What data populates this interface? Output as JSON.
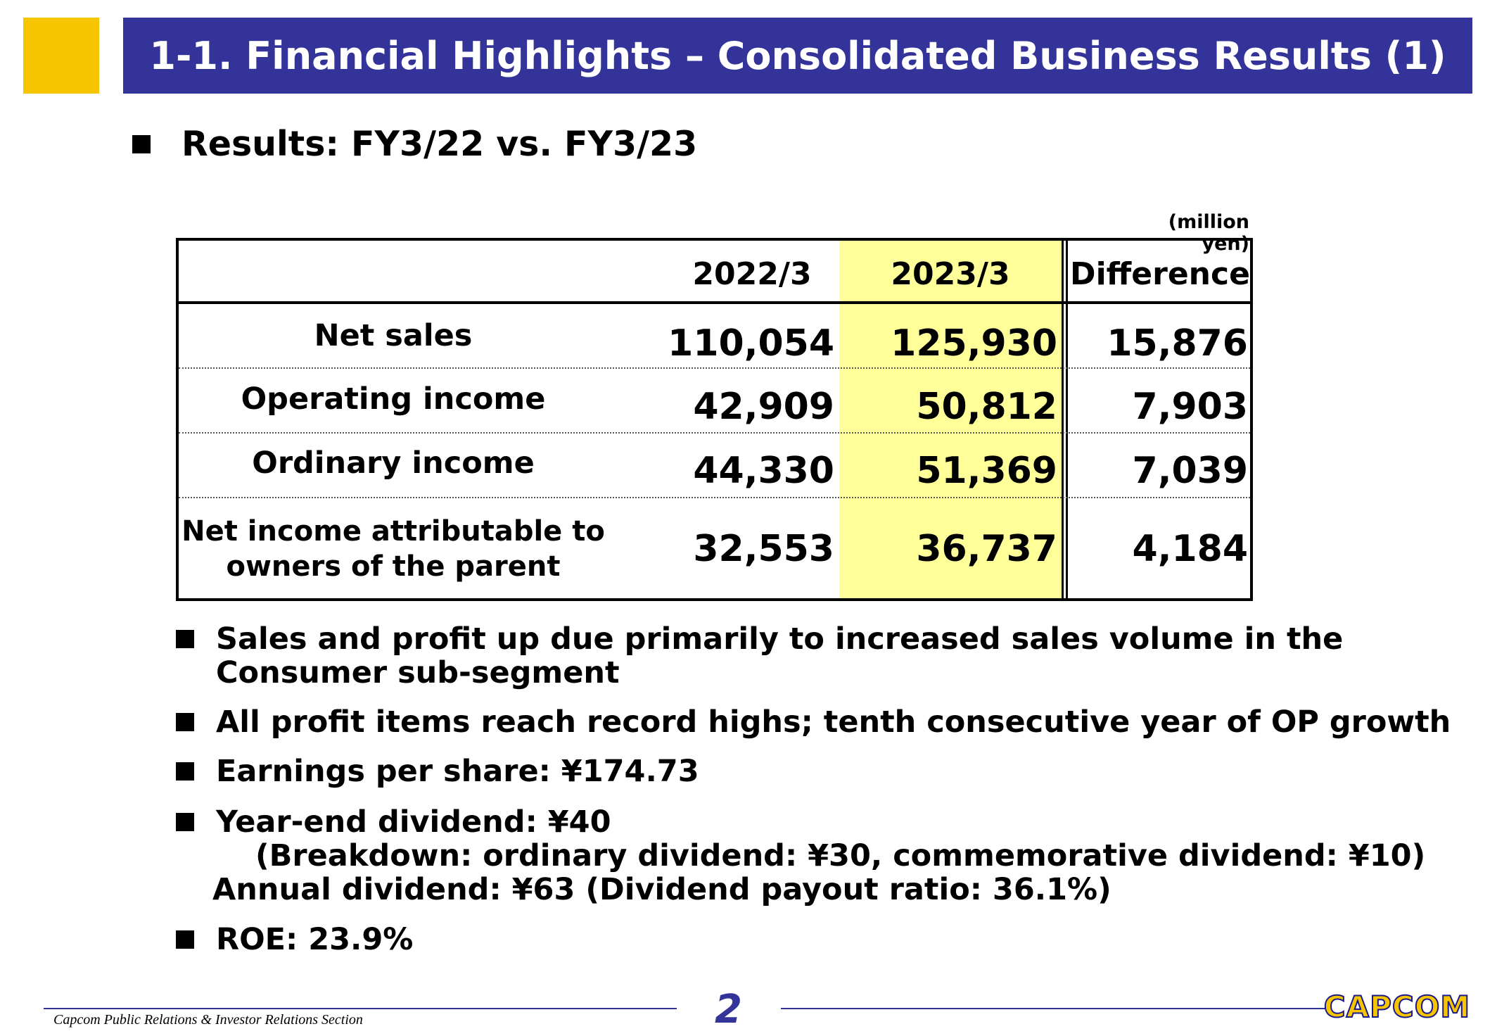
{
  "header": {
    "title": "1-1. Financial Highlights – Consolidated Business Results (1)"
  },
  "subtitle": "Results: FY3/22 vs. FY3/23",
  "unit": "(million yen)",
  "table": {
    "columns": [
      "2022/3",
      "2023/3",
      "Difference"
    ],
    "rows": [
      {
        "label": "Net sales",
        "values": [
          "110,054",
          "125,930",
          "15,876"
        ]
      },
      {
        "label": "Operating income",
        "values": [
          "42,909",
          "50,812",
          "7,903"
        ]
      },
      {
        "label": "Ordinary income",
        "values": [
          "44,330",
          "51,369",
          "7,039"
        ]
      },
      {
        "label_line1": "Net income attributable to",
        "label_line2": "owners of the parent",
        "values": [
          "32,553",
          "36,737",
          "4,184"
        ]
      }
    ]
  },
  "notes": {
    "n1_line1": "Sales and profit up due primarily to increased sales volume in the",
    "n1_line2": "Consumer sub-segment",
    "n2": "All profit items reach record highs; tenth consecutive year of OP growth",
    "n3": "Earnings per share: ¥174.73",
    "n4_line1": "Year-end dividend: ¥40",
    "n4_line2": "(Breakdown: ordinary dividend: ¥30, commemorative dividend: ¥10)",
    "n4_line3": "Annual dividend: ¥63 (Dividend payout ratio: 36.1%)",
    "n5": "ROE: 23.9%"
  },
  "footer": {
    "text": "Capcom Public Relations & Investor Relations Section",
    "page": "2",
    "logo": "CAPCOM"
  },
  "colors": {
    "title_bar": "#33339a",
    "accent_square": "#f7c400",
    "highlight_column": "#ffff99"
  }
}
